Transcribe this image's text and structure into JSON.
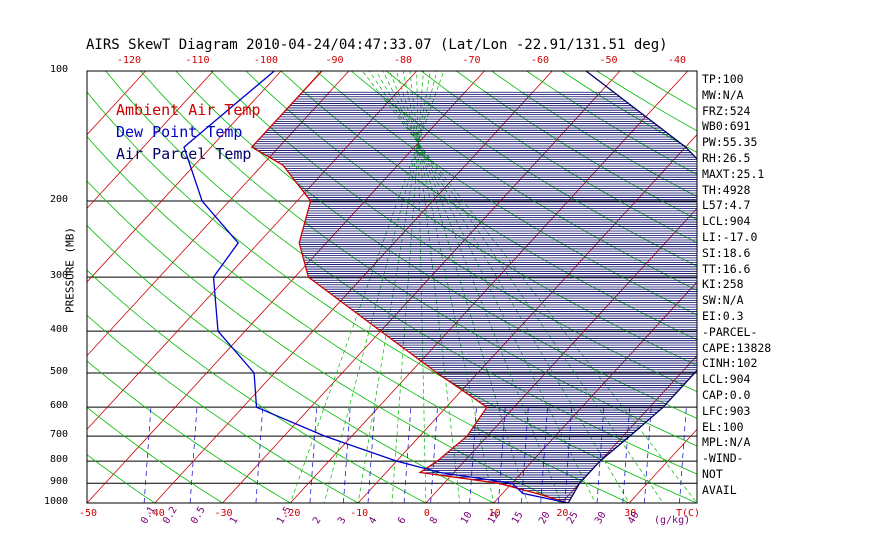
{
  "title": "AIRS SkewT Diagram 2010-04-24/04:47:33.07 (Lat/Lon -22.91/131.51 deg)",
  "colors": {
    "ambient": "#cc0000",
    "dewpoint": "#0000cc",
    "parcel": "#000066",
    "isotherm": "#cc0000",
    "dry_adiabat": "#00bb00",
    "moist_adiabat": "#00bb00",
    "mixing_ratio": "#0000cc",
    "hatch": "#000066"
  },
  "chart_data": {
    "type": "line",
    "title": "AIRS SkewT Diagram 2010-04-24/04:47:33.07 (Lat/Lon -22.91/131.51 deg)",
    "ylabel": "PRESSURE (MB)",
    "xlabel": "T(C)",
    "yscale": "log",
    "ylim": [
      1000,
      100
    ],
    "xlim": [
      -50,
      40
    ],
    "pressure_ticks": [
      100,
      200,
      300,
      400,
      500,
      600,
      700,
      800,
      900,
      1000
    ],
    "bottom_temp_ticks": [
      -50,
      -40,
      -30,
      -20,
      -10,
      0,
      10,
      20,
      30
    ],
    "top_temp_ticks": [
      -120,
      -110,
      -100,
      -90,
      -80,
      -70,
      -60,
      -50,
      -40
    ],
    "mixing_ratio_ticks": [
      "0.1",
      "0.2",
      "0.5",
      "1",
      "1.5",
      "2",
      "3",
      "4",
      "6",
      "8",
      "10",
      "12",
      "15",
      "20",
      "25",
      "30",
      "40"
    ],
    "mixing_ratio_label": "(g/kg)",
    "legend": [
      {
        "name": "Ambient Air Temp",
        "color": "#cc0000"
      },
      {
        "name": "Dew Point Temp",
        "color": "#0000cc"
      },
      {
        "name": "Air Parcel Temp",
        "color": "#000066"
      }
    ],
    "series": [
      {
        "name": "Ambient Air Temp",
        "points": [
          [
            100,
            -74
          ],
          [
            150,
            -74
          ],
          [
            165,
            -67
          ],
          [
            200,
            -58
          ],
          [
            250,
            -54
          ],
          [
            300,
            -48
          ],
          [
            400,
            -30
          ],
          [
            500,
            -16
          ],
          [
            600,
            -4
          ],
          [
            700,
            -3
          ],
          [
            800,
            -4
          ],
          [
            850,
            -5
          ],
          [
            900,
            8
          ],
          [
            950,
            15
          ],
          [
            1000,
            21
          ]
        ]
      },
      {
        "name": "Dew Point Temp",
        "points": [
          [
            100,
            -81
          ],
          [
            150,
            -84
          ],
          [
            200,
            -74
          ],
          [
            250,
            -63
          ],
          [
            300,
            -62
          ],
          [
            400,
            -54
          ],
          [
            500,
            -43
          ],
          [
            600,
            -38
          ],
          [
            700,
            -24
          ],
          [
            800,
            -10
          ],
          [
            850,
            -2
          ],
          [
            900,
            10
          ],
          [
            950,
            13
          ],
          [
            1000,
            21
          ]
        ]
      },
      {
        "name": "Air Parcel Temp",
        "points": [
          [
            100,
            -35
          ],
          [
            150,
            -10
          ],
          [
            200,
            5
          ],
          [
            250,
            14
          ],
          [
            300,
            18
          ],
          [
            400,
            22
          ],
          [
            500,
            22
          ],
          [
            600,
            22
          ],
          [
            700,
            21
          ],
          [
            800,
            20
          ],
          [
            900,
            20
          ],
          [
            950,
            20.5
          ],
          [
            1000,
            21
          ]
        ]
      }
    ],
    "indices": [
      "TP:100",
      "MW:N/A",
      "FRZ:524",
      "WB0:691",
      "PW:55.35",
      "RH:26.5",
      "MAXT:25.1",
      "TH:4928",
      "L57:4.7",
      "LCL:904",
      "LI:-17.0",
      "SI:18.6",
      "TT:16.6",
      "KI:258",
      "SW:N/A",
      "EI:0.3",
      "-PARCEL-",
      "CAPE:13828",
      "CINH:102",
      "LCL:904",
      "CAP:0.0",
      "LFC:903",
      "EL:100",
      "MPL:N/A",
      "-WIND-",
      "NOT",
      "AVAIL"
    ]
  }
}
